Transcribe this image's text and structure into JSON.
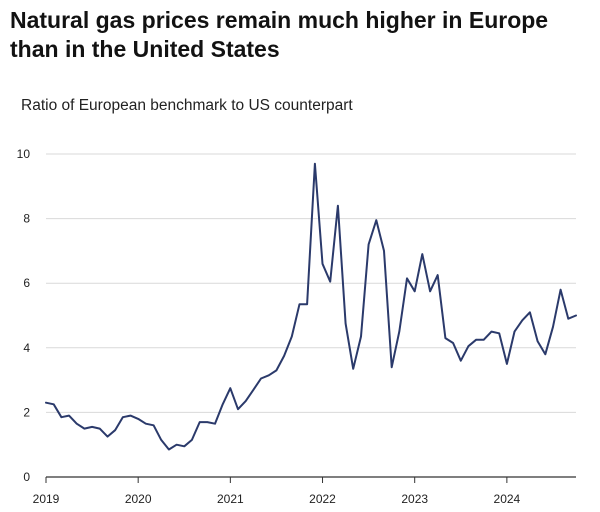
{
  "chart_data": {
    "type": "line",
    "title": "Natural gas prices remain much higher in Europe than in the United States",
    "subtitle": "Ratio of European benchmark to US counterpart",
    "xlabel": "",
    "ylabel": "",
    "ylim": [
      0,
      10
    ],
    "xlim": [
      2019.0,
      2024.75
    ],
    "y_ticks": [
      0,
      2,
      4,
      6,
      8,
      10
    ],
    "x_ticks": [
      {
        "value": 2019,
        "label": "2019"
      },
      {
        "value": 2020,
        "label": "2020"
      },
      {
        "value": 2021,
        "label": "2021"
      },
      {
        "value": 2022,
        "label": "2022"
      },
      {
        "value": 2023,
        "label": "2023"
      },
      {
        "value": 2024,
        "label": "2024"
      }
    ],
    "grid": true,
    "line_color": "#2b3a6b",
    "grid_color": "#d9d9d9",
    "series": [
      {
        "name": "Ratio of European benchmark to US counterpart",
        "x": [
          2019.0,
          2019.083,
          2019.167,
          2019.25,
          2019.333,
          2019.417,
          2019.5,
          2019.583,
          2019.667,
          2019.75,
          2019.833,
          2019.917,
          2020.0,
          2020.083,
          2020.167,
          2020.25,
          2020.333,
          2020.417,
          2020.5,
          2020.583,
          2020.667,
          2020.75,
          2020.833,
          2020.917,
          2021.0,
          2021.083,
          2021.167,
          2021.25,
          2021.333,
          2021.417,
          2021.5,
          2021.583,
          2021.667,
          2021.75,
          2021.833,
          2021.917,
          2022.0,
          2022.083,
          2022.167,
          2022.25,
          2022.333,
          2022.417,
          2022.5,
          2022.583,
          2022.667,
          2022.75,
          2022.833,
          2022.917,
          2023.0,
          2023.083,
          2023.167,
          2023.25,
          2023.333,
          2023.417,
          2023.5,
          2023.583,
          2023.667,
          2023.75,
          2023.833,
          2023.917,
          2024.0,
          2024.083,
          2024.167,
          2024.25,
          2024.333,
          2024.417,
          2024.5,
          2024.583,
          2024.667,
          2024.75
        ],
        "values": [
          2.3,
          2.25,
          1.85,
          1.9,
          1.65,
          1.5,
          1.55,
          1.5,
          1.25,
          1.45,
          1.85,
          1.9,
          1.8,
          1.65,
          1.6,
          1.15,
          0.85,
          1.0,
          0.95,
          1.15,
          1.7,
          1.7,
          1.65,
          2.25,
          2.75,
          2.1,
          2.35,
          2.7,
          3.05,
          3.15,
          3.3,
          3.75,
          4.35,
          5.35,
          5.35,
          9.7,
          6.6,
          6.05,
          8.4,
          4.75,
          3.35,
          4.35,
          7.2,
          7.95,
          7.0,
          3.4,
          4.5,
          6.15,
          5.75,
          6.9,
          5.75,
          6.25,
          4.3,
          4.15,
          3.6,
          4.05,
          4.25,
          4.25,
          4.5,
          4.45,
          3.5,
          4.5,
          4.85,
          5.1,
          4.2,
          3.8,
          4.65,
          5.8,
          4.9,
          5.0
        ]
      }
    ]
  }
}
